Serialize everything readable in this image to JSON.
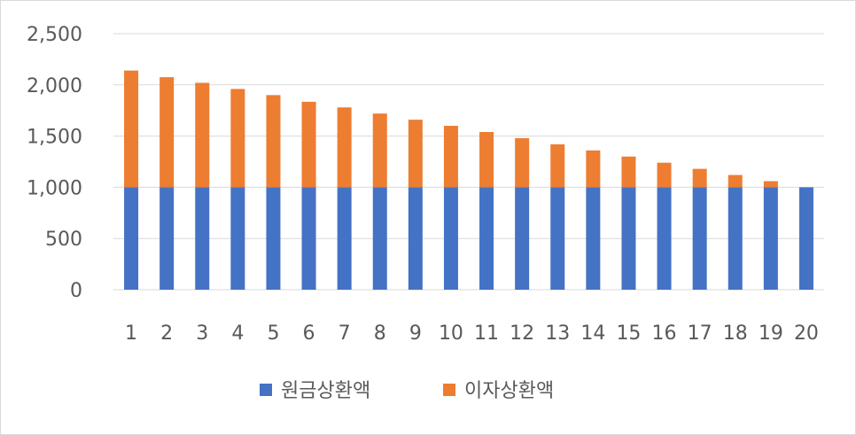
{
  "chart_data": {
    "type": "bar",
    "stacked": true,
    "categories": [
      "1",
      "2",
      "3",
      "4",
      "5",
      "6",
      "7",
      "8",
      "9",
      "10",
      "11",
      "12",
      "13",
      "14",
      "15",
      "16",
      "17",
      "18",
      "19",
      "20"
    ],
    "series": [
      {
        "name": "원금상환액",
        "color": "#4472c4",
        "values": [
          1000,
          1000,
          1000,
          1000,
          1000,
          1000,
          1000,
          1000,
          1000,
          1000,
          1000,
          1000,
          1000,
          1000,
          1000,
          1000,
          1000,
          1000,
          1000,
          1000
        ]
      },
      {
        "name": "이자상환액",
        "color": "#ed7d31",
        "values": [
          1140,
          1075,
          1020,
          960,
          900,
          835,
          780,
          720,
          660,
          600,
          540,
          480,
          420,
          360,
          300,
          240,
          180,
          120,
          60,
          0
        ]
      }
    ],
    "ylim": [
      0,
      2500
    ],
    "yticks": [
      0,
      500,
      1000,
      1500,
      2000,
      2500
    ],
    "ytick_labels": [
      "0",
      "500",
      "1,000",
      "1,500",
      "2,000",
      "2,500"
    ],
    "grid": true,
    "legend_position": "bottom",
    "title": "",
    "xlabel": "",
    "ylabel": ""
  }
}
